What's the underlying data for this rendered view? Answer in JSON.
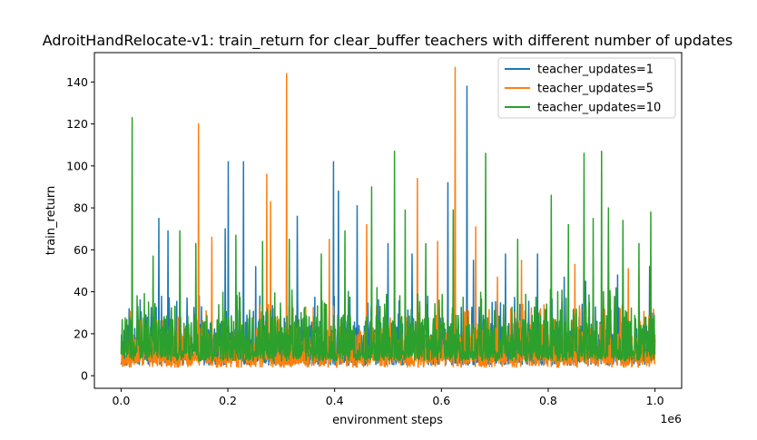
{
  "chart_data": {
    "type": "line",
    "title": "AdroitHandRelocate-v1: train_return for clear_buffer teachers with different number of updates",
    "xlabel": "environment steps",
    "ylabel": "train_return",
    "x_offset_label": "1e6",
    "xlim": [
      -0.05,
      1.05
    ],
    "ylim": [
      -6,
      154
    ],
    "x_ticks": [
      0.0,
      0.2,
      0.4,
      0.6,
      0.8,
      1.0
    ],
    "x_tick_labels": [
      "0.0",
      "0.2",
      "0.4",
      "0.6",
      "0.8",
      "1.0"
    ],
    "y_ticks": [
      0,
      20,
      40,
      60,
      80,
      100,
      120,
      140
    ],
    "y_tick_labels": [
      "0",
      "20",
      "40",
      "60",
      "80",
      "100",
      "120",
      "140"
    ],
    "grid": false,
    "legend_position": "top-right",
    "x_range": [
      0.0,
      1.0
    ],
    "series": [
      {
        "name": "teacher_updates=1",
        "color": "#1f77b4",
        "baseline": 7,
        "band_high": 38,
        "spikes": [
          [
            0.071,
            75
          ],
          [
            0.088,
            69
          ],
          [
            0.195,
            70
          ],
          [
            0.201,
            102
          ],
          [
            0.229,
            102
          ],
          [
            0.252,
            52
          ],
          [
            0.33,
            76
          ],
          [
            0.398,
            102
          ],
          [
            0.407,
            88
          ],
          [
            0.442,
            81
          ],
          [
            0.5,
            63
          ],
          [
            0.545,
            58
          ],
          [
            0.612,
            92
          ],
          [
            0.648,
            138
          ],
          [
            0.66,
            55
          ],
          [
            0.72,
            58
          ],
          [
            0.78,
            58
          ],
          [
            0.83,
            47
          ],
          [
            0.87,
            45
          ],
          [
            0.93,
            48
          ],
          [
            0.99,
            52
          ]
        ]
      },
      {
        "name": "teacher_updates=5",
        "color": "#ff7f0e",
        "baseline": 6,
        "band_high": 34,
        "spikes": [
          [
            0.145,
            120
          ],
          [
            0.17,
            66
          ],
          [
            0.273,
            96
          ],
          [
            0.28,
            83
          ],
          [
            0.31,
            144
          ],
          [
            0.39,
            65
          ],
          [
            0.46,
            72
          ],
          [
            0.555,
            94
          ],
          [
            0.593,
            64
          ],
          [
            0.626,
            147
          ],
          [
            0.664,
            71
          ],
          [
            0.705,
            47
          ],
          [
            0.75,
            55
          ],
          [
            0.85,
            53
          ],
          [
            0.95,
            51
          ]
        ]
      },
      {
        "name": "teacher_updates=10",
        "color": "#2ca02c",
        "baseline": 9,
        "band_high": 42,
        "spikes": [
          [
            0.021,
            123
          ],
          [
            0.06,
            57
          ],
          [
            0.11,
            69
          ],
          [
            0.14,
            63
          ],
          [
            0.215,
            67
          ],
          [
            0.265,
            64
          ],
          [
            0.315,
            65
          ],
          [
            0.375,
            58
          ],
          [
            0.419,
            69
          ],
          [
            0.469,
            90
          ],
          [
            0.512,
            107
          ],
          [
            0.532,
            79
          ],
          [
            0.571,
            63
          ],
          [
            0.622,
            79
          ],
          [
            0.683,
            106
          ],
          [
            0.743,
            65
          ],
          [
            0.806,
            86
          ],
          [
            0.838,
            72
          ],
          [
            0.867,
            106
          ],
          [
            0.884,
            75
          ],
          [
            0.9,
            107
          ],
          [
            0.913,
            80
          ],
          [
            0.94,
            74
          ],
          [
            0.97,
            63
          ],
          [
            0.992,
            78
          ]
        ]
      }
    ]
  }
}
